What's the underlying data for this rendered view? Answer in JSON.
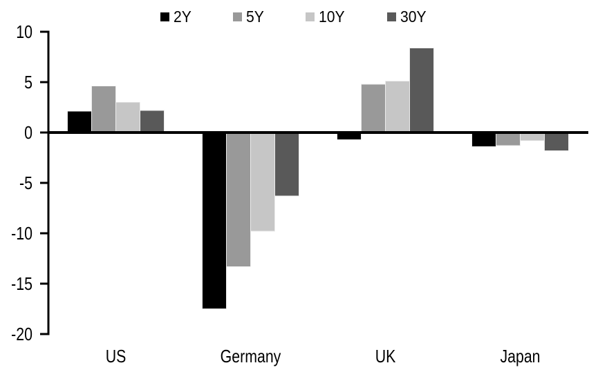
{
  "chart_data": {
    "type": "bar",
    "title": "",
    "xlabel": "",
    "ylabel": "",
    "categories": [
      "US",
      "Germany",
      "UK",
      "Japan"
    ],
    "series": [
      {
        "name": "2Y",
        "color": "#000000",
        "values": [
          2.1,
          -17.5,
          -0.7,
          -1.4
        ]
      },
      {
        "name": "5Y",
        "color": "#999999",
        "values": [
          4.6,
          -13.3,
          4.8,
          -1.3
        ]
      },
      {
        "name": "10Y",
        "color": "#c6c6c6",
        "values": [
          3.0,
          -9.8,
          5.1,
          -0.8
        ]
      },
      {
        "name": "30Y",
        "color": "#595959",
        "values": [
          2.2,
          -6.3,
          8.4,
          -1.8
        ]
      }
    ],
    "ylim": [
      -20,
      10
    ],
    "yticks": [
      10,
      5,
      0,
      -5,
      -10,
      -15,
      -20
    ],
    "grid": false,
    "legend_position": "top",
    "axis_color": "#000000",
    "background": "#ffffff"
  }
}
